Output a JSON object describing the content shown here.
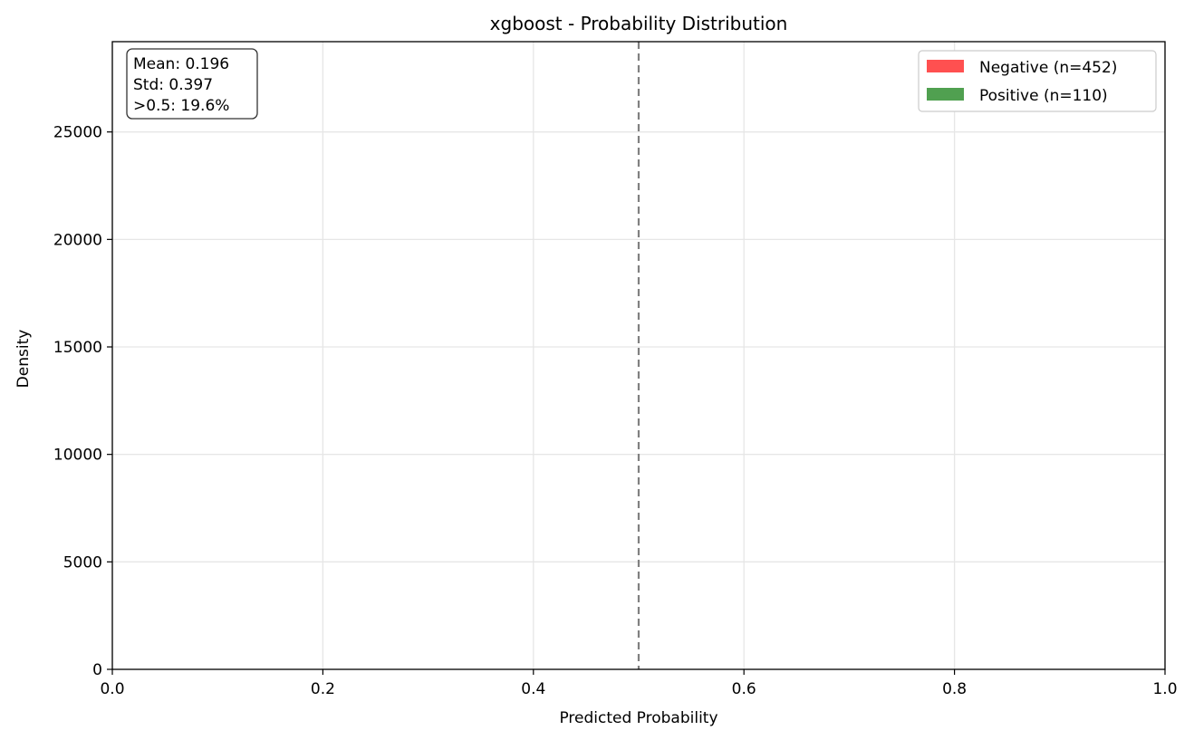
{
  "chart_data": {
    "type": "bar",
    "title": "xgboost - Probability Distribution",
    "xlabel": "Predicted Probability",
    "ylabel": "Density",
    "xlim": [
      0.0,
      1.0
    ],
    "ylim": [
      0,
      29200
    ],
    "x_ticks": [
      "0.0",
      "0.2",
      "0.4",
      "0.6",
      "0.8",
      "1.0"
    ],
    "y_ticks": [
      "0",
      "5000",
      "10000",
      "15000",
      "20000",
      "25000"
    ],
    "grid": true,
    "threshold_line": {
      "x": 0.5,
      "style": "dashed",
      "color": "#808080"
    },
    "series": [
      {
        "name": "Negative (n=452)",
        "color": "#ff5050",
        "values": []
      },
      {
        "name": "Positive (n=110)",
        "color": "#50a050",
        "values": []
      }
    ],
    "legend_placement": "top-right",
    "stats": {
      "mean": "Mean: 0.196",
      "std": "Std: 0.397",
      "above_threshold": ">0.5: 19.6%"
    }
  }
}
